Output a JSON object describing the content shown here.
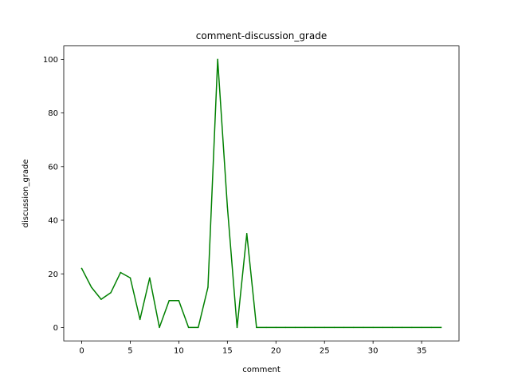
{
  "chart_data": {
    "type": "line",
    "title": "comment-discussion_grade",
    "xlabel": "comment",
    "ylabel": "discussion_grade",
    "xlim": [
      -1.85,
      38.85
    ],
    "ylim": [
      -5,
      105
    ],
    "xticks": [
      0,
      5,
      10,
      15,
      20,
      25,
      30,
      35
    ],
    "yticks": [
      0,
      20,
      40,
      60,
      80,
      100
    ],
    "grid": false,
    "legend": "none",
    "series": [
      {
        "color": "#008000",
        "x": [
          0,
          1,
          2,
          3,
          4,
          5,
          6,
          7,
          8,
          9,
          10,
          11,
          12,
          13,
          14,
          15,
          16,
          17,
          18,
          19,
          20,
          21,
          22,
          23,
          24,
          25,
          26,
          27,
          28,
          29,
          30,
          31,
          32,
          33,
          34,
          35,
          36,
          37
        ],
        "y": [
          22,
          15,
          10.5,
          13,
          20.5,
          18.5,
          3,
          18.5,
          0,
          10,
          10,
          0,
          0,
          15,
          100,
          45,
          0,
          35,
          0,
          0,
          0,
          0,
          0,
          0,
          0,
          0,
          0,
          0,
          0,
          0,
          0,
          0,
          0,
          0,
          0,
          0,
          0,
          0
        ]
      }
    ]
  }
}
